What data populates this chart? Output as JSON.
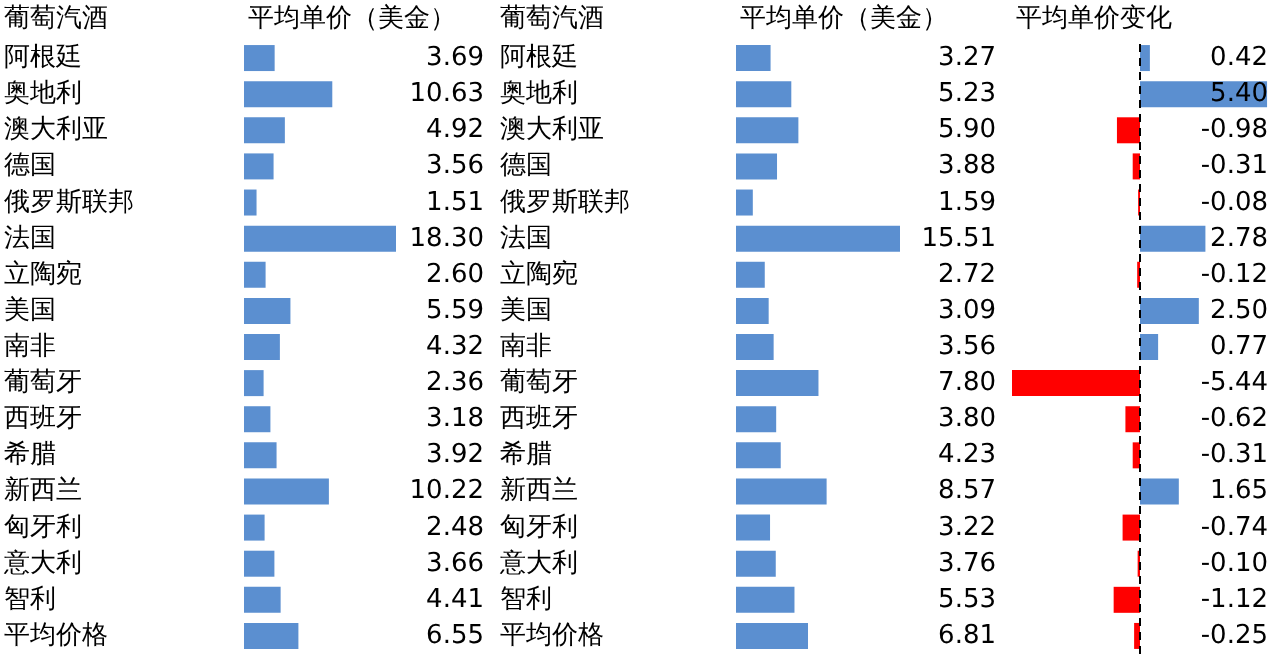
{
  "chart_data": [
    {
      "type": "bar",
      "orientation": "horizontal",
      "ylabel": "葡萄汽酒",
      "title": "平均单价（美金）",
      "categories": [
        "阿根廷",
        "奥地利",
        "澳大利亚",
        "德国",
        "俄罗斯联邦",
        "法国",
        "立陶宛",
        "美国",
        "南非",
        "葡萄牙",
        "西班牙",
        "希腊",
        "新西兰",
        "匈牙利",
        "意大利",
        "智利",
        "平均价格"
      ],
      "values": [
        3.69,
        10.63,
        4.92,
        3.56,
        1.51,
        18.3,
        2.6,
        5.59,
        4.32,
        2.36,
        3.18,
        3.92,
        10.22,
        2.48,
        3.66,
        4.41,
        6.55
      ],
      "value_labels": [
        "3.69",
        "10.63",
        "4.92",
        "3.56",
        "1.51",
        "18.30",
        "2.60",
        "5.59",
        "4.32",
        "2.36",
        "3.18",
        "3.92",
        "10.22",
        "2.48",
        "3.66",
        "4.41",
        "6.55"
      ],
      "color": "#5b8fd0"
    },
    {
      "type": "bar",
      "orientation": "horizontal",
      "ylabel": "葡萄汽酒",
      "title": "平均单价（美金）",
      "categories": [
        "阿根廷",
        "奥地利",
        "澳大利亚",
        "德国",
        "俄罗斯联邦",
        "法国",
        "立陶宛",
        "美国",
        "南非",
        "葡萄牙",
        "西班牙",
        "希腊",
        "新西兰",
        "匈牙利",
        "意大利",
        "智利",
        "平均价格"
      ],
      "values": [
        3.27,
        5.23,
        5.9,
        3.88,
        1.59,
        15.51,
        2.72,
        3.09,
        3.56,
        7.8,
        3.8,
        4.23,
        8.57,
        3.22,
        3.76,
        5.53,
        6.81
      ],
      "value_labels": [
        "3.27",
        "5.23",
        "5.90",
        "3.88",
        "1.59",
        "15.51",
        "2.72",
        "3.09",
        "3.56",
        "7.80",
        "3.80",
        "4.23",
        "8.57",
        "3.22",
        "3.76",
        "5.53",
        "6.81"
      ],
      "color": "#5b8fd0"
    },
    {
      "type": "bar",
      "orientation": "horizontal",
      "title": "平均单价变化",
      "categories": [
        null,
        null,
        null,
        null,
        null,
        null,
        null,
        null,
        null,
        null,
        null,
        null,
        null,
        null,
        null,
        null,
        null
      ],
      "values": [
        0.42,
        5.4,
        -0.98,
        -0.31,
        -0.08,
        2.78,
        -0.12,
        2.5,
        0.77,
        -5.44,
        -0.62,
        -0.31,
        1.65,
        -0.74,
        -0.1,
        -1.12,
        -0.25
      ],
      "value_labels": [
        "0.42",
        "5.40",
        "-0.98",
        "-0.31",
        "-0.08",
        "2.78",
        "-0.12",
        "2.50",
        "0.77",
        "-5.44",
        "-0.62",
        "-0.31",
        "1.65",
        "-0.74",
        "-0.10",
        "-1.12",
        "-0.25"
      ],
      "colors": [
        "#5b8fd0",
        "#5b8fd0",
        "#ff0000",
        "#ff0000",
        "#ff0000",
        "#5b8fd0",
        "#ff0000",
        "#5b8fd0",
        "#5b8fd0",
        "#ff0000",
        "#ff0000",
        "#ff0000",
        "#5b8fd0",
        "#ff0000",
        "#ff0000",
        "#ff0000",
        "#ff0000"
      ],
      "ref_lines": [
        {
          "axis": "x",
          "value": 0,
          "line_style": "dashed",
          "color": "#000000"
        }
      ]
    }
  ]
}
